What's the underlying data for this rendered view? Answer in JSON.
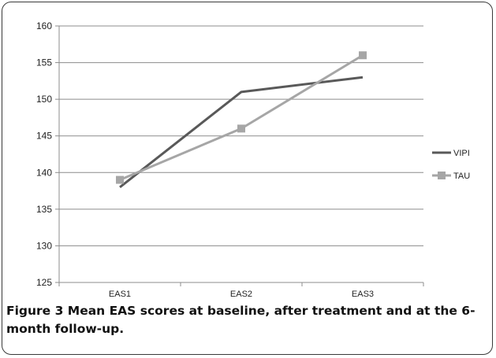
{
  "chart_data": {
    "type": "line",
    "categories": [
      "EAS1",
      "EAS2",
      "EAS3"
    ],
    "series": [
      {
        "name": "VIPI",
        "values": [
          138,
          151,
          153
        ],
        "color": "#595959",
        "marker": "none"
      },
      {
        "name": "TAU",
        "values": [
          139,
          146,
          156
        ],
        "color": "#a6a6a6",
        "marker": "square"
      }
    ],
    "ylim": [
      125,
      160
    ],
    "yticks": [
      125,
      130,
      135,
      140,
      145,
      150,
      155,
      160
    ],
    "grid": true,
    "legend_position": "right",
    "title": "",
    "xlabel": "",
    "ylabel": ""
  },
  "caption": {
    "label": "Figure 3",
    "text": " Mean EAS scores at baseline, after treatment and at the 6-month follow-up."
  }
}
